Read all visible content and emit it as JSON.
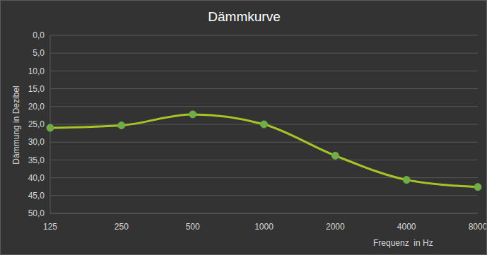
{
  "chart_data": {
    "type": "line",
    "title": "Dämmkurve",
    "x_label": "Frequenz  in Hz",
    "y_label": "Dämmung in Dezibel",
    "categories": [
      "125",
      "250",
      "500",
      "1000",
      "2000",
      "4000",
      "8000"
    ],
    "values": [
      26.0,
      25.3,
      22.2,
      25.0,
      33.8,
      40.6,
      42.6
    ],
    "color": "#a5c526",
    "marker": "circle",
    "line_style": "solid",
    "ylim": [
      0,
      50
    ],
    "yticks": [
      {
        "value": 0,
        "label": "0,0"
      },
      {
        "value": 5,
        "label": "5,0"
      },
      {
        "value": 10,
        "label": "10,0"
      },
      {
        "value": 15,
        "label": "15,0"
      },
      {
        "value": 20,
        "label": "20,0"
      },
      {
        "value": 25,
        "label": "25,0"
      },
      {
        "value": 30,
        "label": "30,0"
      },
      {
        "value": 35,
        "label": "35,0"
      },
      {
        "value": 40,
        "label": "40,0"
      },
      {
        "value": 45,
        "label": "45,0"
      },
      {
        "value": 50,
        "label": "50,0"
      }
    ],
    "grid": true
  }
}
